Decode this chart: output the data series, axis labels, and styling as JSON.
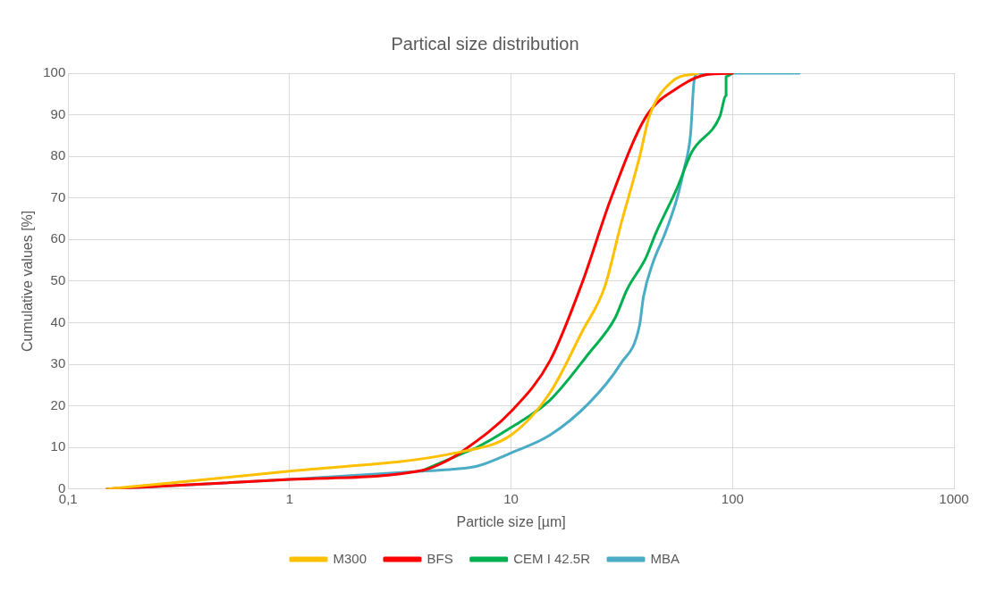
{
  "chart_data": {
    "type": "line",
    "title": "Partical size distribution",
    "xlabel": "Particle size [µm]",
    "ylabel": "Cumulative values [%]",
    "log": "x",
    "xlim": [
      0.1,
      1000
    ],
    "xticks": [
      {
        "value": 0.1,
        "label": "0,1"
      },
      1,
      10,
      100,
      1000
    ],
    "ylim": [
      0,
      100
    ],
    "yticks": [
      0,
      10,
      20,
      30,
      40,
      50,
      60,
      70,
      80,
      90,
      100
    ],
    "grid": true,
    "legend": "bottom",
    "marker": "none",
    "line_style": "solid",
    "series": [
      {
        "name": "M300",
        "color": "#ffc000",
        "x": [
          0.15,
          1,
          6,
          10,
          15,
          20.9,
          26.5,
          31.2,
          38.1,
          42,
          53.3,
          69.5
        ],
        "values": [
          0,
          4.3,
          9,
          13,
          23.2,
          37.8,
          48.7,
          63.3,
          80,
          89.5,
          98,
          100
        ]
      },
      {
        "name": "BFS",
        "color": "#ff0000",
        "x": [
          0.15,
          1,
          4,
          5,
          6,
          10.1,
          15,
          20.9,
          28.3,
          40.6,
          56.2,
          76.6,
          100
        ],
        "values": [
          0,
          2.3,
          4.5,
          6.5,
          9,
          18.9,
          30.9,
          49.5,
          70,
          89.5,
          96.4,
          99.7,
          100
        ]
      },
      {
        "name": "CEM I 42.5R",
        "color": "#00b050",
        "x": [
          4,
          6,
          7,
          10,
          15,
          22.5,
          29.4,
          33.4,
          40.6,
          45,
          56.2,
          65.4,
          87.5,
          93.5,
          93.5,
          100
        ],
        "values": [
          4.5,
          8.5,
          10,
          14.8,
          21.4,
          32.7,
          41,
          48,
          55.6,
          61.5,
          72.4,
          81,
          89.5,
          94.6,
          99.2,
          100
        ]
      },
      {
        "name": "MBA",
        "color": "#4bacc6",
        "x": [
          0.15,
          1,
          4,
          5.5,
          7,
          10,
          15,
          22.5,
          31.2,
          38,
          39.6,
          43.8,
          49.6,
          56.2,
          60.3,
          64.6,
          67,
          69.5,
          200
        ],
        "values": [
          0,
          2.3,
          4.3,
          4.8,
          5.5,
          8.7,
          13,
          20.7,
          30.1,
          39.3,
          46.2,
          54.6,
          61.5,
          70,
          76.8,
          85.2,
          98,
          100,
          100
        ]
      }
    ]
  }
}
